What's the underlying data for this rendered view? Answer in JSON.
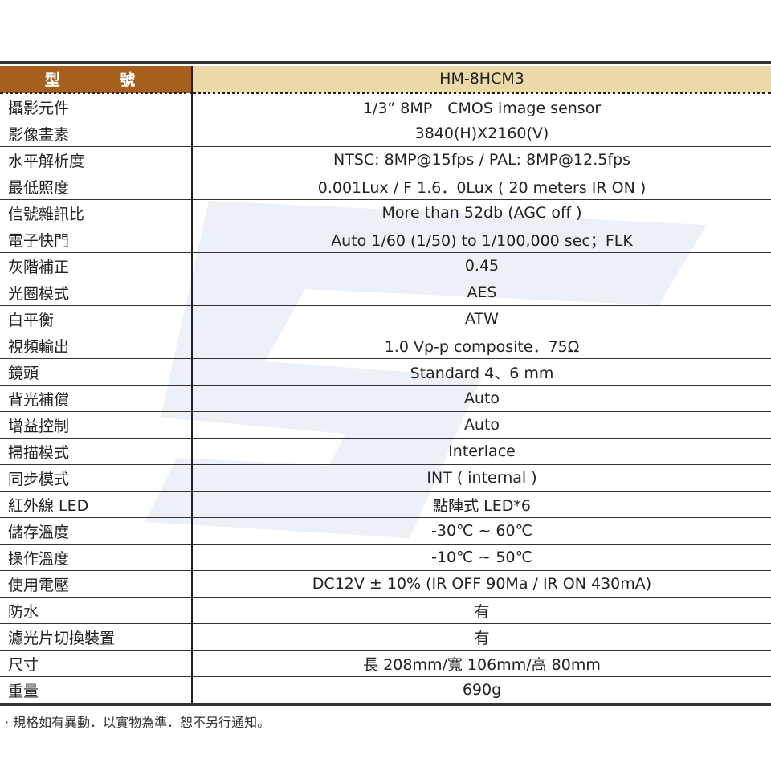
{
  "header": {
    "label": "型 號",
    "model": "HM-8HCM3"
  },
  "rows": [
    {
      "k": "攝影元件",
      "v": "1/3” 8MP　CMOS image sensor"
    },
    {
      "k": "影像畫素",
      "v": "3840(H)X2160(V)"
    },
    {
      "k": "水平解析度",
      "v": "NTSC: 8MP@15fps / PAL: 8MP@12.5fps"
    },
    {
      "k": "最低照度",
      "v": "0.001Lux / F 1.6．0Lux ( 20 meters IR ON )"
    },
    {
      "k": "信號雜訊比",
      "v": "More than 52db (AGC off )"
    },
    {
      "k": "電子快門",
      "v": "Auto 1/60 (1/50) to 1/100,000 sec；FLK"
    },
    {
      "k": "灰階補正",
      "v": "0.45"
    },
    {
      "k": "光圈模式",
      "v": "AES"
    },
    {
      "k": "白平衡",
      "v": "ATW"
    },
    {
      "k": "視頻輸出",
      "v": "1.0 Vp-p composite．75Ω"
    },
    {
      "k": "鏡頭",
      "v": "Standard 4、6 mm"
    },
    {
      "k": "背光補償",
      "v": "Auto"
    },
    {
      "k": "增益控制",
      "v": "Auto"
    },
    {
      "k": "掃描模式",
      "v": "Interlace"
    },
    {
      "k": "同步模式",
      "v": "INT ( internal )"
    },
    {
      "k": "紅外線 LED",
      "v": "點陣式 LED*6"
    },
    {
      "k": "儲存溫度",
      "v": "-30℃ ~ 60℃"
    },
    {
      "k": "操作溫度",
      "v": "-10℃ ~ 50℃"
    },
    {
      "k": "使用電壓",
      "v": "DC12V ± 10% (IR OFF 90Ma / IR ON 430mA)"
    },
    {
      "k": "防水",
      "v": "有"
    },
    {
      "k": "濾光片切換裝置",
      "v": "有"
    },
    {
      "k": "尺寸",
      "v": "長 208mm/寬 106mm/高 80mm"
    },
    {
      "k": "重量",
      "v": "690g"
    }
  ],
  "footnote": "· 規格如有異動．以實物為準．恕不另行通知。"
}
